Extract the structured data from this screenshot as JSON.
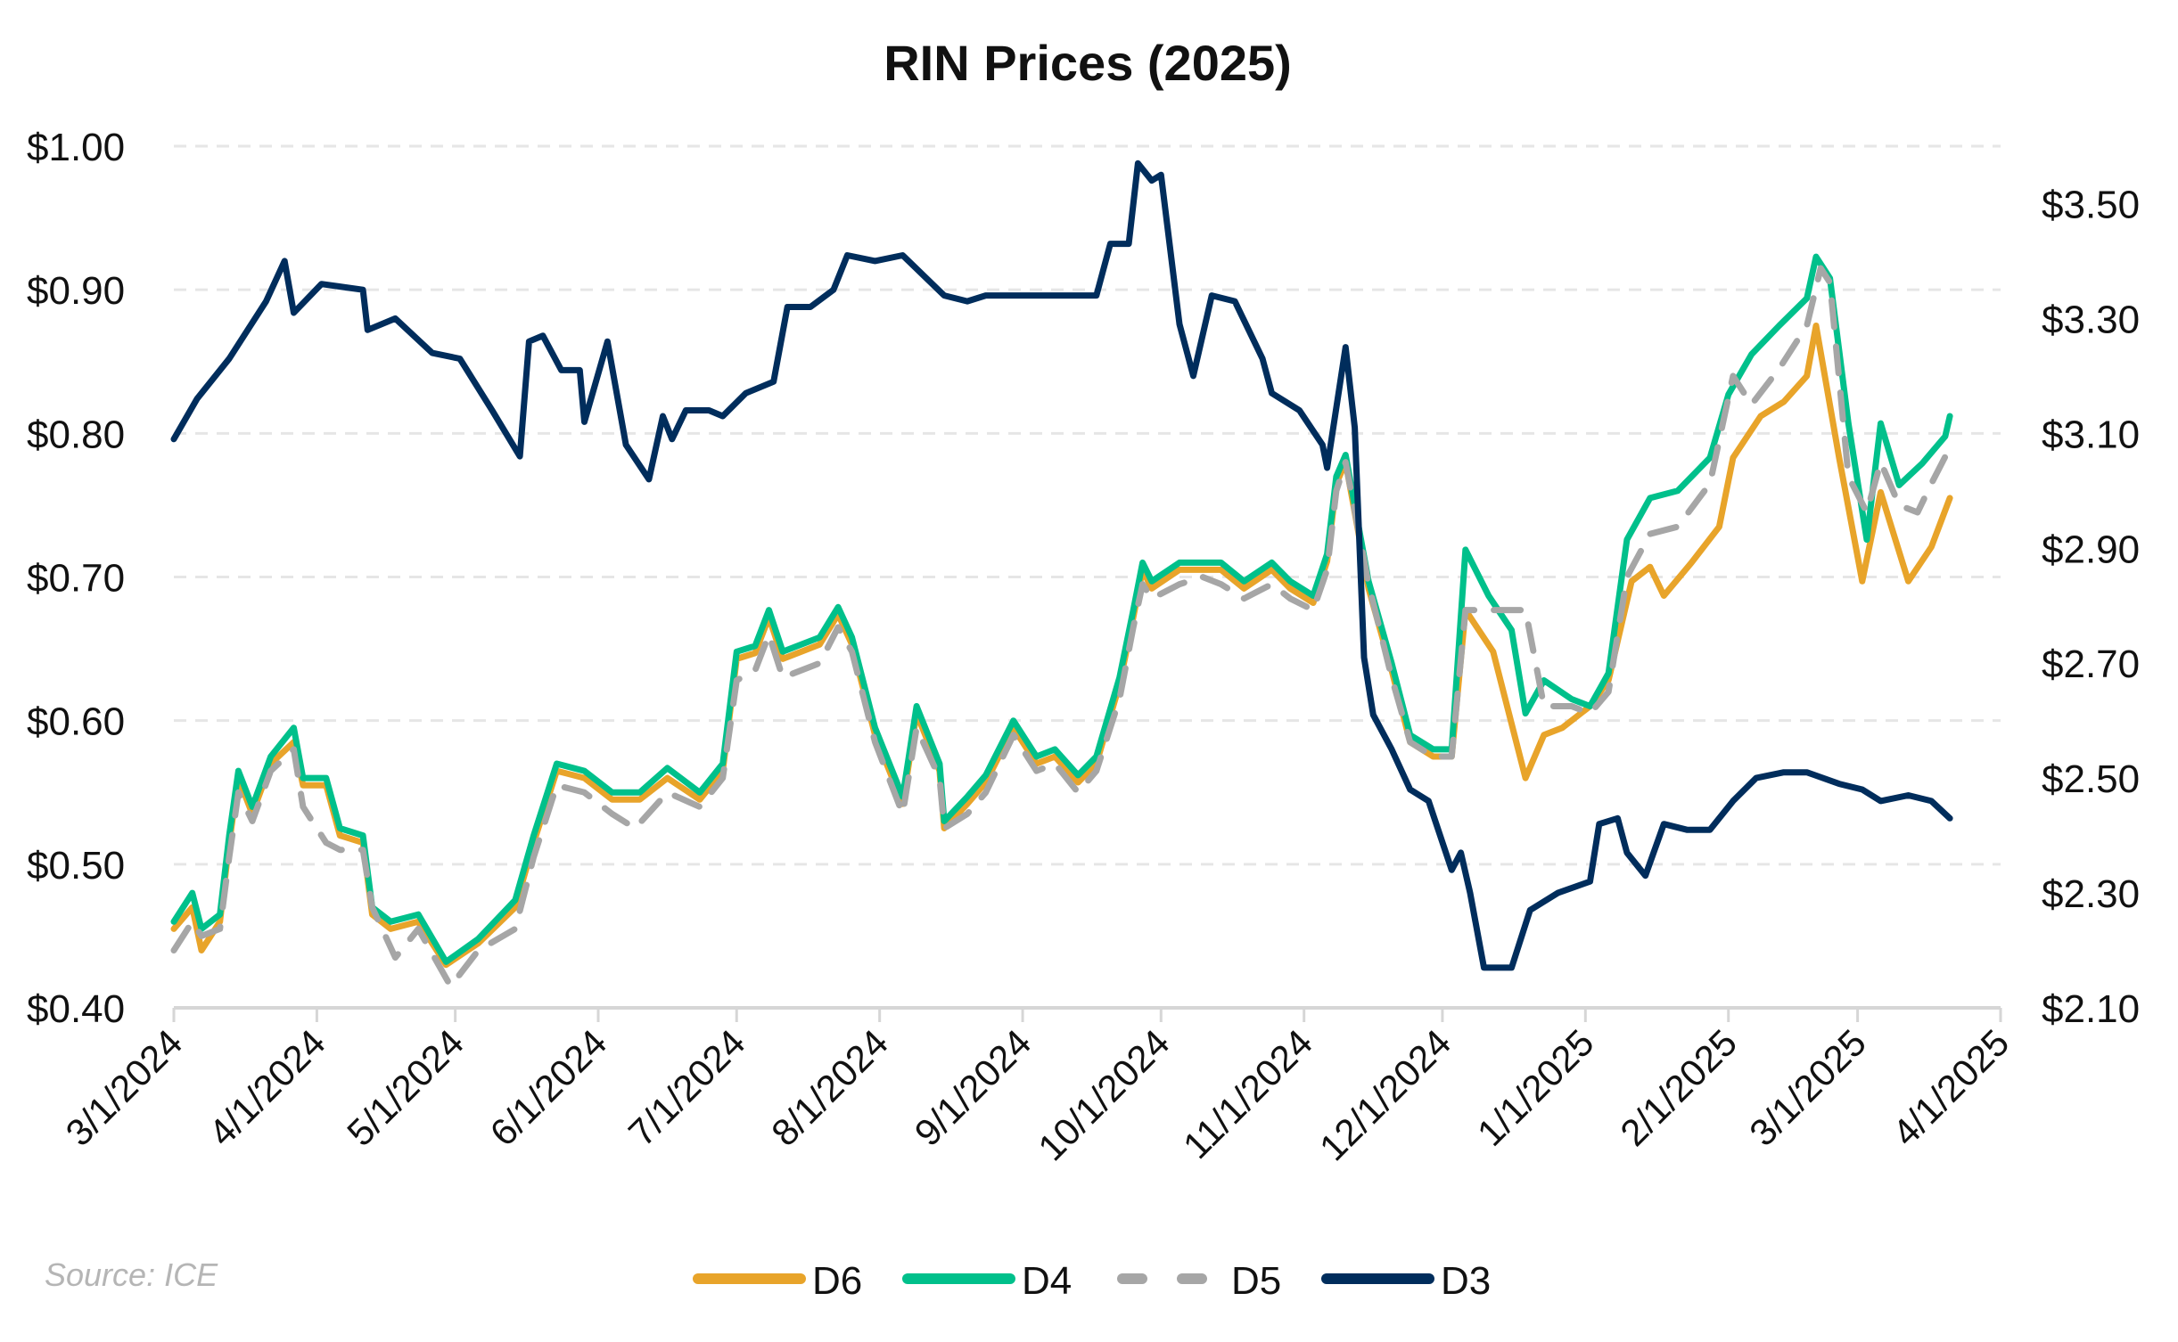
{
  "chart_data": {
    "type": "line",
    "title": "RIN Prices (2025)",
    "source": "Source: ICE",
    "x_unit": "days since 3/1/2024",
    "xlim": [
      0,
      396
    ],
    "x_ticks": [
      {
        "day": 0,
        "label": "3/1/2024"
      },
      {
        "day": 31,
        "label": "4/1/2024"
      },
      {
        "day": 61,
        "label": "5/1/2024"
      },
      {
        "day": 92,
        "label": "6/1/2024"
      },
      {
        "day": 122,
        "label": "7/1/2024"
      },
      {
        "day": 153,
        "label": "8/1/2024"
      },
      {
        "day": 184,
        "label": "9/1/2024"
      },
      {
        "day": 214,
        "label": "10/1/2024"
      },
      {
        "day": 245,
        "label": "11/1/2024"
      },
      {
        "day": 275,
        "label": "12/1/2024"
      },
      {
        "day": 306,
        "label": "1/1/2025"
      },
      {
        "day": 337,
        "label": "2/1/2025"
      },
      {
        "day": 365,
        "label": "3/1/2025"
      },
      {
        "day": 396,
        "label": "4/1/2025"
      }
    ],
    "y_left": {
      "ylim": [
        0.4,
        1.0
      ],
      "ticks": [
        {
          "value": 1.0,
          "label": "$1.00"
        },
        {
          "value": 0.9,
          "label": "$0.90"
        },
        {
          "value": 0.8,
          "label": "$0.80"
        },
        {
          "value": 0.7,
          "label": "$0.70"
        },
        {
          "value": 0.6,
          "label": "$0.60"
        },
        {
          "value": 0.5,
          "label": "$0.50"
        },
        {
          "value": 0.4,
          "label": "$0.40"
        }
      ]
    },
    "y_right": {
      "ylim": [
        2.1,
        3.6
      ],
      "ticks": [
        {
          "value": 3.5,
          "label": "$3.50"
        },
        {
          "value": 3.3,
          "label": "$3.30"
        },
        {
          "value": 3.1,
          "label": "$3.10"
        },
        {
          "value": 2.9,
          "label": "$2.90"
        },
        {
          "value": 2.7,
          "label": "$2.70"
        },
        {
          "value": 2.5,
          "label": "$2.50"
        },
        {
          "value": 2.3,
          "label": "$2.30"
        },
        {
          "value": 2.1,
          "label": "$2.10"
        }
      ]
    },
    "grid": "horizontal dashed",
    "legend_position": "bottom-center",
    "series": [
      {
        "name": "D6",
        "axis": "left",
        "color": "#E8A42A",
        "dash": false,
        "x": [
          0,
          4,
          6,
          10,
          12,
          14,
          17,
          21,
          26,
          28,
          33,
          36,
          41,
          43,
          47,
          53,
          59,
          66,
          74,
          78,
          83,
          89,
          95,
          101,
          107,
          114,
          119,
          122,
          126,
          129,
          132,
          140,
          144,
          147,
          152,
          158,
          161,
          166,
          167,
          172,
          176,
          182,
          187,
          191,
          196,
          200,
          205,
          208,
          210,
          212,
          218,
          223,
          227,
          232,
          238,
          242,
          247,
          250,
          252,
          254,
          259,
          264,
          268,
          273,
          277,
          280,
          286,
          293,
          297,
          301,
          307,
          311,
          316,
          320,
          323,
          329,
          335,
          338,
          344,
          349,
          354,
          356,
          361,
          366,
          370,
          376,
          381,
          385
        ],
        "y": [
          0.455,
          0.47,
          0.44,
          0.46,
          0.515,
          0.56,
          0.535,
          0.57,
          0.585,
          0.555,
          0.555,
          0.52,
          0.515,
          0.465,
          0.455,
          0.46,
          0.43,
          0.445,
          0.47,
          0.515,
          0.565,
          0.56,
          0.545,
          0.545,
          0.56,
          0.545,
          0.565,
          0.643,
          0.647,
          0.672,
          0.643,
          0.653,
          0.674,
          0.653,
          0.59,
          0.542,
          0.605,
          0.565,
          0.525,
          0.542,
          0.557,
          0.595,
          0.57,
          0.575,
          0.557,
          0.57,
          0.625,
          0.672,
          0.705,
          0.692,
          0.705,
          0.705,
          0.705,
          0.692,
          0.705,
          0.692,
          0.682,
          0.711,
          0.765,
          0.78,
          0.692,
          0.635,
          0.585,
          0.575,
          0.575,
          0.677,
          0.648,
          0.56,
          0.59,
          0.595,
          0.61,
          0.628,
          0.697,
          0.707,
          0.687,
          0.71,
          0.735,
          0.783,
          0.812,
          0.822,
          0.84,
          0.875,
          0.783,
          0.697,
          0.759,
          0.697,
          0.721,
          0.755
        ]
      },
      {
        "name": "D4",
        "axis": "left",
        "color": "#00C08B",
        "dash": false,
        "x": [
          0,
          4,
          6,
          10,
          12,
          14,
          17,
          21,
          26,
          28,
          33,
          36,
          41,
          43,
          47,
          53,
          59,
          66,
          74,
          78,
          83,
          89,
          95,
          101,
          107,
          114,
          119,
          122,
          126,
          129,
          132,
          140,
          144,
          147,
          152,
          158,
          161,
          166,
          167,
          172,
          176,
          182,
          187,
          191,
          196,
          200,
          205,
          208,
          210,
          212,
          218,
          223,
          227,
          232,
          238,
          242,
          247,
          250,
          252,
          254,
          259,
          264,
          268,
          273,
          277,
          280,
          285,
          290,
          293,
          297,
          303,
          307,
          311,
          315,
          320,
          326,
          333,
          337,
          342,
          348,
          354,
          356,
          359,
          363,
          367,
          370,
          374,
          379,
          384,
          385
        ],
        "y": [
          0.46,
          0.48,
          0.455,
          0.465,
          0.52,
          0.565,
          0.54,
          0.575,
          0.595,
          0.56,
          0.56,
          0.525,
          0.52,
          0.47,
          0.46,
          0.465,
          0.432,
          0.448,
          0.475,
          0.52,
          0.57,
          0.565,
          0.55,
          0.55,
          0.567,
          0.55,
          0.57,
          0.648,
          0.652,
          0.677,
          0.648,
          0.658,
          0.679,
          0.658,
          0.595,
          0.547,
          0.61,
          0.57,
          0.53,
          0.547,
          0.562,
          0.6,
          0.575,
          0.58,
          0.562,
          0.575,
          0.63,
          0.677,
          0.71,
          0.697,
          0.71,
          0.71,
          0.71,
          0.697,
          0.71,
          0.697,
          0.687,
          0.716,
          0.77,
          0.785,
          0.697,
          0.64,
          0.59,
          0.58,
          0.58,
          0.719,
          0.687,
          0.663,
          0.605,
          0.628,
          0.615,
          0.61,
          0.633,
          0.726,
          0.755,
          0.76,
          0.783,
          0.827,
          0.855,
          0.875,
          0.894,
          0.923,
          0.908,
          0.807,
          0.726,
          0.807,
          0.764,
          0.779,
          0.798,
          0.812
        ]
      },
      {
        "name": "D5",
        "axis": "left",
        "color": "#A6A6A6",
        "dash": true,
        "x": [
          0,
          4,
          6,
          10,
          12,
          14,
          17,
          21,
          26,
          28,
          33,
          36,
          41,
          43,
          48,
          53,
          60,
          66,
          74,
          78,
          83,
          89,
          95,
          100,
          107,
          114,
          119,
          122,
          126,
          129,
          132,
          140,
          144,
          147,
          152,
          158,
          161,
          166,
          167,
          172,
          176,
          182,
          187,
          191,
          196,
          200,
          205,
          208,
          210,
          212,
          218,
          223,
          227,
          232,
          238,
          242,
          247,
          250,
          252,
          254,
          259,
          264,
          268,
          273,
          277,
          280,
          286,
          290,
          293,
          297,
          303,
          307,
          311,
          315,
          320,
          326,
          333,
          338,
          342,
          348,
          354,
          357,
          359,
          363,
          367,
          370,
          374,
          378,
          381,
          385
        ],
        "y": [
          0.44,
          0.46,
          0.45,
          0.455,
          0.505,
          0.55,
          0.53,
          0.565,
          0.58,
          0.54,
          0.515,
          0.51,
          0.51,
          0.47,
          0.435,
          0.455,
          0.415,
          0.44,
          0.455,
          0.505,
          0.555,
          0.55,
          0.535,
          0.525,
          0.55,
          0.54,
          0.56,
          0.628,
          0.635,
          0.66,
          0.63,
          0.64,
          0.665,
          0.648,
          0.585,
          0.535,
          0.595,
          0.56,
          0.525,
          0.535,
          0.55,
          0.59,
          0.565,
          0.57,
          0.55,
          0.565,
          0.615,
          0.665,
          0.695,
          0.685,
          0.695,
          0.7,
          0.695,
          0.685,
          0.695,
          0.685,
          0.677,
          0.705,
          0.76,
          0.78,
          0.695,
          0.63,
          0.585,
          0.575,
          0.575,
          0.677,
          0.677,
          0.677,
          0.677,
          0.61,
          0.61,
          0.605,
          0.62,
          0.7,
          0.73,
          0.735,
          0.765,
          0.84,
          0.82,
          0.845,
          0.875,
          0.915,
          0.905,
          0.77,
          0.745,
          0.78,
          0.75,
          0.745,
          0.765,
          0.79
        ]
      },
      {
        "name": "D3",
        "axis": "right",
        "color": "#002D5C",
        "dash": false,
        "x": [
          0,
          5,
          12,
          20,
          24,
          26,
          32,
          41,
          42,
          48,
          56,
          62,
          69,
          75,
          77,
          80,
          84,
          88,
          89,
          94,
          98,
          103,
          106,
          108,
          111,
          116,
          119,
          124,
          130,
          133,
          138,
          143,
          146,
          152,
          158,
          167,
          172,
          176,
          188,
          200,
          203,
          207,
          209,
          212,
          214,
          218,
          221,
          225,
          230,
          236,
          238,
          244,
          249,
          250,
          254,
          256,
          258,
          260,
          264,
          268,
          272,
          277,
          279,
          281,
          284,
          290,
          294,
          300,
          307,
          309,
          313,
          315,
          319,
          323,
          328,
          333,
          338,
          343,
          349,
          354,
          361,
          366,
          370,
          376,
          381,
          385
        ],
        "y": [
          3.09,
          3.16,
          3.23,
          3.33,
          3.4,
          3.31,
          3.36,
          3.35,
          3.28,
          3.3,
          3.24,
          3.23,
          3.14,
          3.06,
          3.26,
          3.27,
          3.21,
          3.21,
          3.12,
          3.26,
          3.08,
          3.02,
          3.13,
          3.09,
          3.14,
          3.14,
          3.13,
          3.17,
          3.19,
          3.32,
          3.32,
          3.35,
          3.41,
          3.4,
          3.41,
          3.34,
          3.33,
          3.34,
          3.34,
          3.34,
          3.43,
          3.43,
          3.57,
          3.54,
          3.55,
          3.29,
          3.2,
          3.34,
          3.33,
          3.23,
          3.17,
          3.14,
          3.08,
          3.04,
          3.25,
          3.11,
          2.71,
          2.61,
          2.55,
          2.48,
          2.46,
          2.34,
          2.37,
          2.3,
          2.17,
          2.17,
          2.27,
          2.3,
          2.32,
          2.42,
          2.43,
          2.37,
          2.33,
          2.42,
          2.41,
          2.41,
          2.46,
          2.5,
          2.51,
          2.51,
          2.49,
          2.48,
          2.46,
          2.47,
          2.46,
          2.43
        ]
      }
    ]
  }
}
